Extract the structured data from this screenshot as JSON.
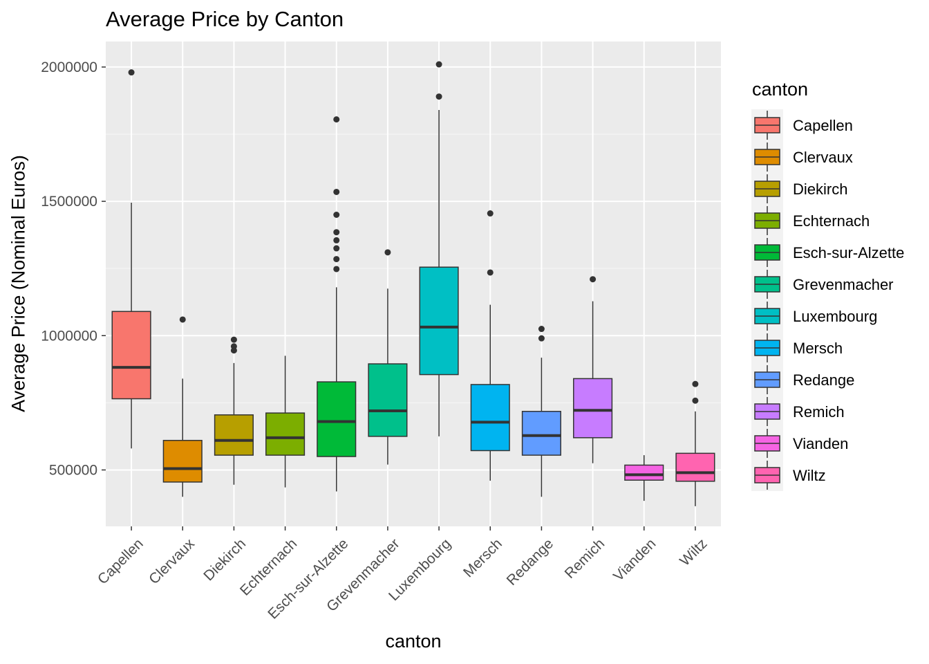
{
  "chart_data": {
    "type": "boxplot",
    "title": "Average Price by Canton",
    "xlabel": "canton",
    "ylabel": "Average Price (Nominal Euros)",
    "ylim": [
      290000,
      2095000
    ],
    "yticks": [
      500000,
      1000000,
      1500000,
      2000000
    ],
    "ytick_labels": [
      "500000",
      "1000000",
      "1500000",
      "2000000"
    ],
    "grid": true,
    "legend": {
      "title": "canton",
      "position": "right"
    },
    "categories": [
      "Capellen",
      "Clervaux",
      "Diekirch",
      "Echternach",
      "Esch-sur-Alzette",
      "Grevenmacher",
      "Luxembourg",
      "Mersch",
      "Redange",
      "Remich",
      "Vianden",
      "Wiltz"
    ],
    "colors": [
      "#F8766D",
      "#DE8C00",
      "#B79F00",
      "#7CAE00",
      "#00BA38",
      "#00C08B",
      "#00BFC4",
      "#00B4F0",
      "#619CFF",
      "#C77CFF",
      "#F564E3",
      "#FF64B0"
    ],
    "boxes": [
      {
        "name": "Capellen",
        "whisker_low": 580000,
        "q1": 765000,
        "median": 882000,
        "q3": 1090000,
        "whisker_high": 1495000,
        "outliers": [
          1980000
        ]
      },
      {
        "name": "Clervaux",
        "whisker_low": 400000,
        "q1": 455000,
        "median": 505000,
        "q3": 610000,
        "whisker_high": 840000,
        "outliers": [
          1060000
        ]
      },
      {
        "name": "Diekirch",
        "whisker_low": 445000,
        "q1": 555000,
        "median": 610000,
        "q3": 705000,
        "whisker_high": 898000,
        "outliers": [
          945000,
          960000,
          985000
        ]
      },
      {
        "name": "Echternach",
        "whisker_low": 435000,
        "q1": 555000,
        "median": 620000,
        "q3": 712000,
        "whisker_high": 925000,
        "outliers": []
      },
      {
        "name": "Esch-sur-Alzette",
        "whisker_low": 420000,
        "q1": 550000,
        "median": 680000,
        "q3": 828000,
        "whisker_high": 1180000,
        "outliers": [
          1248000,
          1285000,
          1325000,
          1355000,
          1385000,
          1450000,
          1535000,
          1805000
        ]
      },
      {
        "name": "Grevenmacher",
        "whisker_low": 520000,
        "q1": 625000,
        "median": 720000,
        "q3": 895000,
        "whisker_high": 1175000,
        "outliers": [
          1310000
        ]
      },
      {
        "name": "Luxembourg",
        "whisker_low": 625000,
        "q1": 855000,
        "median": 1032000,
        "q3": 1255000,
        "whisker_high": 1840000,
        "outliers": [
          1890000,
          2010000
        ]
      },
      {
        "name": "Mersch",
        "whisker_low": 460000,
        "q1": 572000,
        "median": 678000,
        "q3": 818000,
        "whisker_high": 1115000,
        "outliers": [
          1235000,
          1455000
        ]
      },
      {
        "name": "Redange",
        "whisker_low": 400000,
        "q1": 555000,
        "median": 628000,
        "q3": 718000,
        "whisker_high": 918000,
        "outliers": [
          990000,
          1025000
        ]
      },
      {
        "name": "Remich",
        "whisker_low": 525000,
        "q1": 620000,
        "median": 722000,
        "q3": 840000,
        "whisker_high": 1128000,
        "outliers": [
          1210000
        ]
      },
      {
        "name": "Vianden",
        "whisker_low": 385000,
        "q1": 462000,
        "median": 482000,
        "q3": 518000,
        "whisker_high": 555000,
        "outliers": []
      },
      {
        "name": "Wiltz",
        "whisker_low": 365000,
        "q1": 458000,
        "median": 490000,
        "q3": 562000,
        "whisker_high": 718000,
        "outliers": [
          758000,
          820000
        ]
      }
    ]
  }
}
